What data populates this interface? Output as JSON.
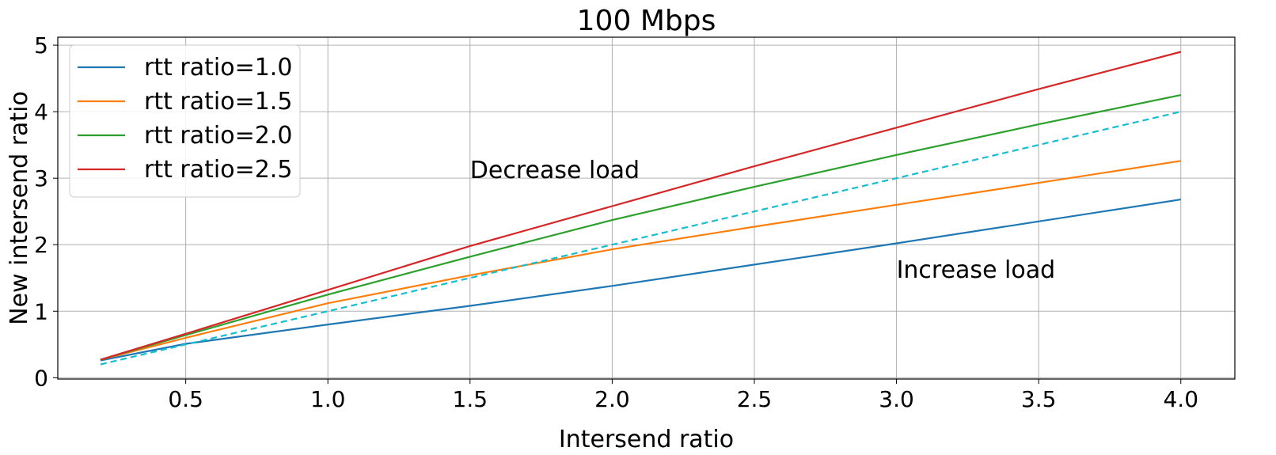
{
  "chart_data": {
    "type": "line",
    "title": "100 Mbps",
    "xlabel": "Intersend ratio",
    "ylabel": "New intersend ratio",
    "xlim": [
      0.05,
      4.19
    ],
    "ylim": [
      -0.02,
      5.12
    ],
    "xticks": [
      0.5,
      1.0,
      1.5,
      2.0,
      2.5,
      3.0,
      3.5,
      4.0
    ],
    "xtick_labels": [
      "0.5",
      "1.0",
      "1.5",
      "2.0",
      "2.5",
      "3.0",
      "3.5",
      "4.0"
    ],
    "yticks": [
      0,
      1,
      2,
      3,
      4,
      5
    ],
    "ytick_labels": [
      "0",
      "1",
      "2",
      "3",
      "4",
      "5"
    ],
    "grid": true,
    "legend_position": "top-left",
    "series": [
      {
        "name": "rtt ratio=1.0",
        "color": "#1f77b4",
        "dash": "solid",
        "x": [
          0.2,
          0.5,
          1.0,
          1.5,
          2.0,
          2.5,
          3.0,
          3.5,
          4.0
        ],
        "y": [
          0.26,
          0.51,
          0.8,
          1.08,
          1.38,
          1.7,
          2.02,
          2.35,
          2.68
        ]
      },
      {
        "name": "rtt ratio=1.5",
        "color": "#ff7f0e",
        "dash": "solid",
        "x": [
          0.2,
          0.5,
          1.0,
          1.5,
          2.0,
          2.5,
          3.0,
          3.5,
          4.0
        ],
        "y": [
          0.27,
          0.6,
          1.12,
          1.54,
          1.93,
          2.27,
          2.6,
          2.93,
          3.26
        ]
      },
      {
        "name": "rtt ratio=2.0",
        "color": "#2ca02c",
        "dash": "solid",
        "x": [
          0.2,
          0.5,
          1.0,
          1.5,
          2.0,
          2.5,
          3.0,
          3.5,
          4.0
        ],
        "y": [
          0.27,
          0.64,
          1.25,
          1.82,
          2.37,
          2.87,
          3.35,
          3.81,
          4.25
        ]
      },
      {
        "name": "rtt ratio=2.5",
        "color": "#d62728",
        "dash": "solid",
        "x": [
          0.2,
          0.5,
          1.0,
          1.5,
          2.0,
          2.5,
          3.0,
          3.5,
          4.0
        ],
        "y": [
          0.27,
          0.66,
          1.32,
          1.98,
          2.58,
          3.18,
          3.76,
          4.34,
          4.9
        ]
      },
      {
        "color": "#17becf",
        "dash": "dashed",
        "x": [
          0.2,
          4.0
        ],
        "y": [
          0.2,
          4.0
        ]
      }
    ],
    "annotations": [
      {
        "text": "Decrease load",
        "x": 1.5,
        "y": 3.0
      },
      {
        "text": "Increase load",
        "x": 3.0,
        "y": 1.5
      }
    ]
  }
}
